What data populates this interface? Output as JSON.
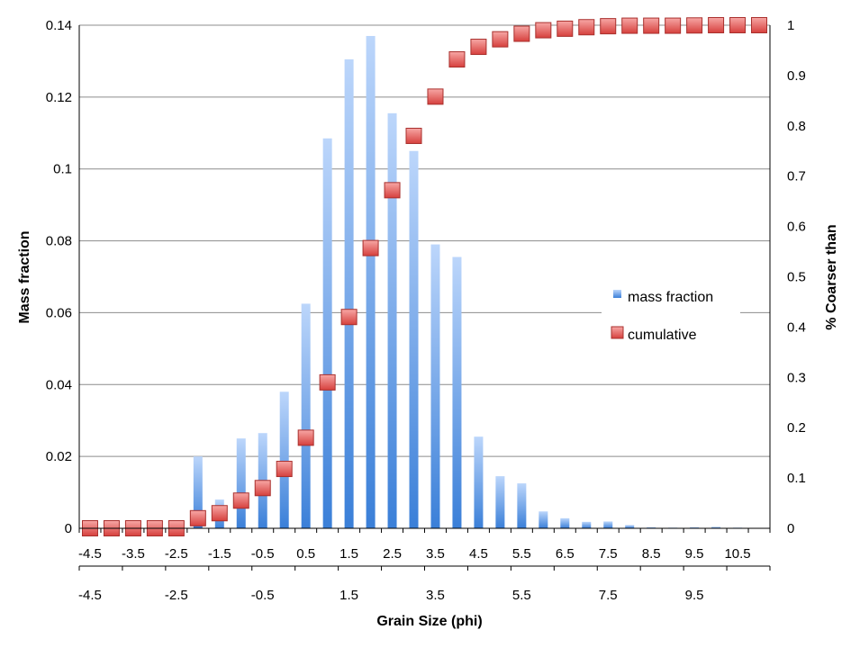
{
  "chart_data": {
    "type": "bar",
    "xlabel": "Grain Size (phi)",
    "ylabel": "Mass fraction",
    "y2label": "% Coarser than",
    "ylim": [
      0,
      0.14
    ],
    "y2lim": [
      0,
      1
    ],
    "y_ticks": [
      "0",
      "0.02",
      "0.04",
      "0.06",
      "0.08",
      "0.1",
      "0.12",
      "0.14"
    ],
    "y2_ticks": [
      "0",
      "0.1",
      "0.2",
      "0.3",
      "0.4",
      "0.5",
      "0.6",
      "0.7",
      "0.8",
      "0.9",
      "1"
    ],
    "x_primary_ticks": [
      "-4.5",
      "-3.5",
      "-2.5",
      "-1.5",
      "-0.5",
      "0.5",
      "1.5",
      "2.5",
      "3.5",
      "4.5",
      "5.5",
      "6.5",
      "7.5",
      "8.5",
      "9.5",
      "10.5"
    ],
    "x_secondary_ticks": [
      "-4.5",
      "-2.5",
      "-0.5",
      "1.5",
      "3.5",
      "5.5",
      "7.5",
      "9.5"
    ],
    "categories": [
      "-4.5",
      "-4",
      "-3.5",
      "-3",
      "-2.5",
      "-2",
      "-1.5",
      "-1",
      "-0.5",
      "0",
      "0.5",
      "1",
      "1.5",
      "2",
      "2.5",
      "3",
      "3.5",
      "4",
      "4.5",
      "5",
      "5.5",
      "6",
      "6.5",
      "7",
      "7.5",
      "8",
      "8.5",
      "9",
      "9.5",
      "10",
      "10.5",
      "11"
    ],
    "series": [
      {
        "name": "mass fraction",
        "color": "#4a8fe0",
        "values": [
          0,
          0,
          0,
          0,
          0,
          0.02,
          0.008,
          0.025,
          0.0265,
          0.038,
          0.0625,
          0.1085,
          0.1305,
          0.137,
          0.1155,
          0.105,
          0.079,
          0.0755,
          0.0255,
          0.0145,
          0.0125,
          0.0047,
          0.0028,
          0.0018,
          0.0019,
          0.0009,
          0.0003,
          0.0002,
          0.0003,
          0.0004,
          0.0002,
          0.0001
        ]
      },
      {
        "name": "cumulative",
        "color": "#e0504e",
        "values": [
          0,
          0,
          0,
          0,
          0,
          0.02,
          0.03,
          0.055,
          0.08,
          0.118,
          0.18,
          0.29,
          0.42,
          0.557,
          0.672,
          0.78,
          0.858,
          0.932,
          0.957,
          0.972,
          0.983,
          0.99,
          0.993,
          0.996,
          0.998,
          0.999,
          0.999,
          0.999,
          0.9995,
          1,
          1,
          1
        ]
      }
    ],
    "legend": "right"
  }
}
